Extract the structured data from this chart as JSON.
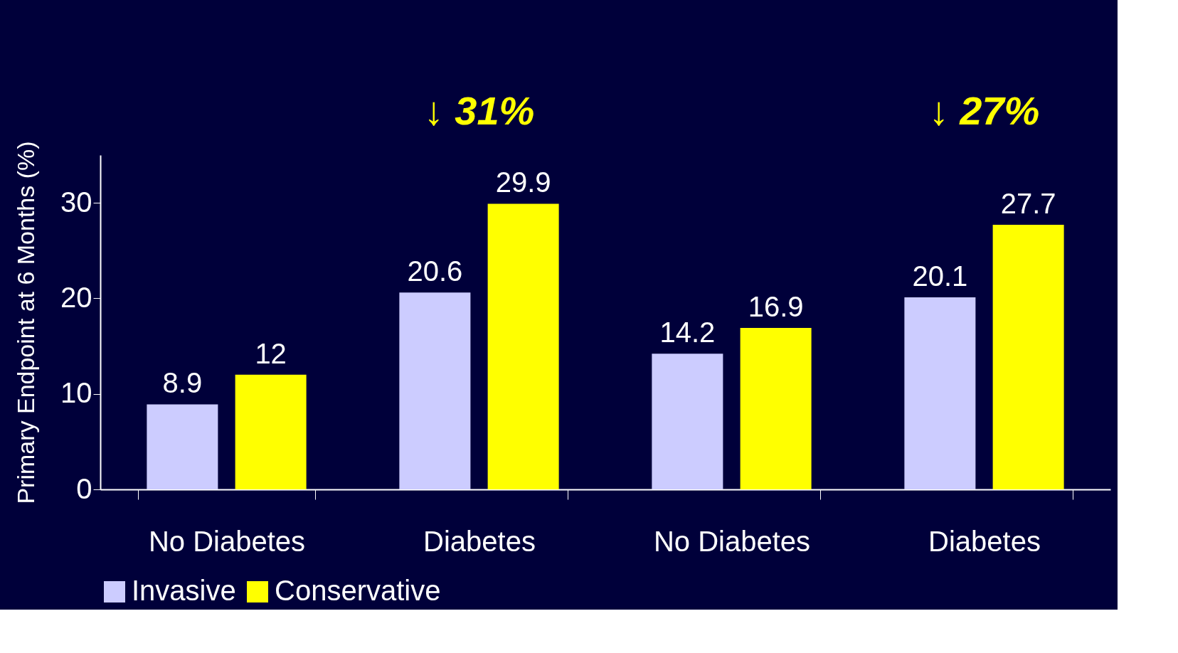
{
  "chart_data": {
    "type": "bar",
    "categories": [
      "No Diabetes",
      "Diabetes",
      "No Diabetes",
      "Diabetes"
    ],
    "series": [
      {
        "name": "Invasive",
        "color": "#ccccff",
        "values": [
          8.9,
          20.6,
          14.2,
          20.1
        ]
      },
      {
        "name": "Conservative",
        "color": "#ffff00",
        "values": [
          12,
          29.9,
          16.9,
          27.7
        ]
      }
    ],
    "ylabel": "Primary Endpoint at 6 Months (%)",
    "ylim": [
      0,
      35
    ],
    "yticks": [
      0,
      10,
      20,
      30
    ],
    "data_labels": true,
    "grid": false,
    "legend": "bottom",
    "annotations": [
      "↓ 31%",
      "↓ 27%"
    ]
  }
}
